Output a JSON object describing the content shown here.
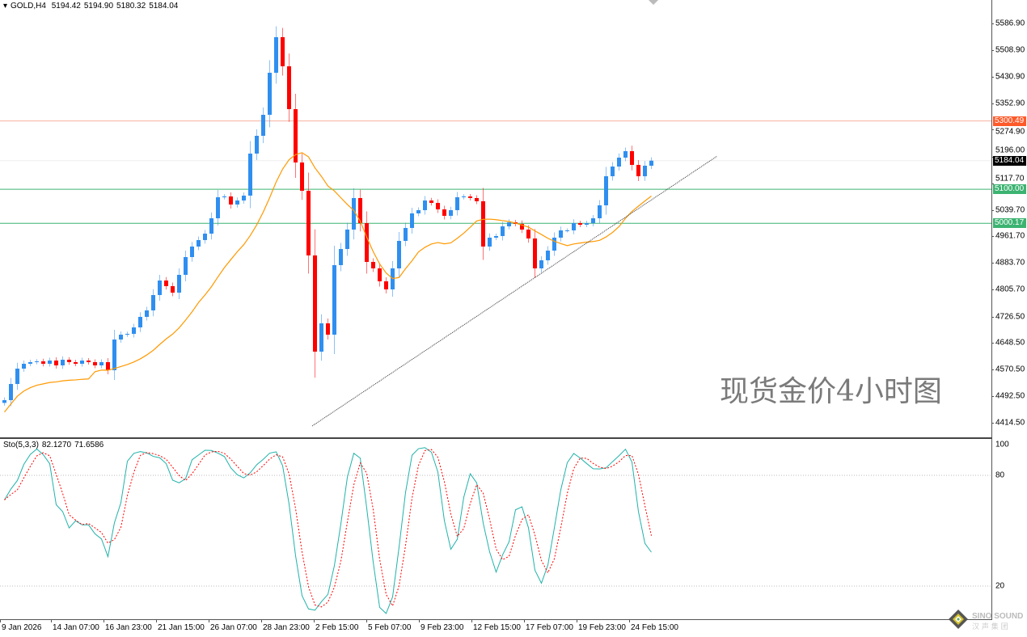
{
  "header": {
    "symbol": "GOLD,H4",
    "open": "5194.42",
    "high": "5194.90",
    "low": "5180.32",
    "close": "5184.04"
  },
  "watermark": "现货金价4小时图",
  "logo": {
    "text": "SINO SOUND",
    "sub": "汉 声 集 团"
  },
  "colors": {
    "bull": "#2f8ff0",
    "bear": "#ff0000",
    "ma": "#ff9900",
    "stoch_main": "#20b2aa",
    "stoch_signal": "#ff0000",
    "resistance_line": "#f4b0a0",
    "support_line": "#3cb371",
    "trendline": "#333333"
  },
  "chart_data": [
    {
      "type": "candlestick",
      "title": "GOLD,H4",
      "ylim": [
        4400,
        5620
      ],
      "y_ticks": [
        "5586.90",
        "5508.90",
        "5430.90",
        "5352.90",
        "5274.90",
        "5196.00",
        "5117.70",
        "5039.70",
        "4961.70",
        "4883.70",
        "4805.70",
        "4726.50",
        "4648.50",
        "4570.50",
        "4492.50",
        "4414.50"
      ],
      "x_ticks": [
        "9 Jan 2026",
        "14 Jan 07:00",
        "16 Jan 23:00",
        "21 Jan 15:00",
        "26 Jan 07:00",
        "28 Jan 23:00",
        "2 Feb 15:00",
        "5 Feb 07:00",
        "9 Feb 23:00",
        "12 Feb 15:00",
        "17 Feb 07:00",
        "19 Feb 23:00",
        "24 Feb 15:00"
      ],
      "closes": [
        4480.9,
        4528.4,
        4573.5,
        4587.7,
        4592.5,
        4594.9,
        4587.7,
        4597.2,
        4583.0,
        4599.6,
        4592.5,
        4587.7,
        4597.2,
        4592.5,
        4583.0,
        4592.5,
        4568.8,
        4658.9,
        4673.2,
        4675.6,
        4694.5,
        4725.4,
        4744.4,
        4789.5,
        4832.2,
        4815.6,
        4796.6,
        4848.8,
        4901.0,
        4931.9,
        4950.9,
        4969.8,
        5014.9,
        5076.6,
        5079.0,
        5055.3,
        5067.1,
        5081.4,
        5204.8,
        5257.0,
        5318.7,
        5442.1,
        5546.6,
        5461.1,
        5335.3,
        5178.7,
        5095.6,
        4905.8,
        4623.3,
        4706.4,
        4673.2,
        4877.3,
        4924.7,
        4981.7,
        5074.3,
        5000.7,
        4886.8,
        4867.8,
        4829.8,
        4806.1,
        4867.8,
        4948.5,
        4986.5,
        5029.2,
        5038.7,
        5067.1,
        5060.0,
        5041.0,
        5022.1,
        5038.7,
        5076.6,
        5079.0,
        5074.3,
        5064.8,
        4931.9,
        4958.0,
        4962.7,
        4991.2,
        5003.1,
        4998.3,
        4981.7,
        4955.6,
        4867.8,
        4891.5,
        4920.0,
        4958.0,
        4979.3,
        4979.3,
        5000.7,
        4995.9,
        5000.7,
        5014.9,
        5052.9,
        5138.3,
        5166.8,
        5192.9,
        5211.9,
        5171.6,
        5138.3,
        5169.2,
        5184.04
      ],
      "horizontal_lines": [
        {
          "value": 5300.49,
          "label": "5300.49",
          "color": "#ff5a2a"
        },
        {
          "value": 5100.0,
          "label": "5100.00",
          "color": "#3cb371"
        },
        {
          "value": 5000.17,
          "label": "5000.17",
          "color": "#3cb371"
        }
      ],
      "current_price": {
        "value": 5184.04,
        "label": "5184.04",
        "color": "#000000"
      },
      "trendline": {
        "from": 4405.0,
        "to": 5197.7
      }
    },
    {
      "type": "line",
      "title": "Sto(5,3,3) 82.1270 71.6586",
      "label": "Sto(5,3,3)",
      "main_value": "82.1270",
      "signal_value": "71.6586",
      "ylim": [
        0,
        100
      ],
      "levels": [
        "100",
        "80",
        "20"
      ]
    }
  ]
}
